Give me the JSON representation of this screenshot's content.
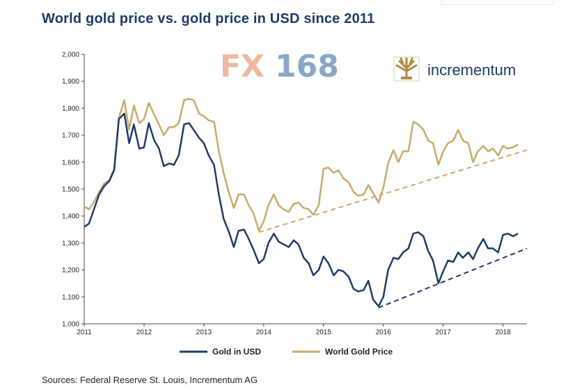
{
  "title": "World gold price vs. gold price in USD since 2011",
  "source": "Sources: Federal Reserve St. Louis, Incrementum AG",
  "brand": {
    "fx_part1": "FX",
    "fx_part2": "168",
    "incrementum": "incrementum",
    "fx_color1": "#f0b8a0",
    "fx_color2": "#8aa7c7",
    "incrementum_icon": "tree-logo-icon"
  },
  "chart_data": {
    "type": "line",
    "title": "World gold price vs. gold price in USD since 2011",
    "xlabel": "",
    "ylabel": "",
    "xlim": [
      2011.0,
      2018.4
    ],
    "ylim": [
      1000,
      2000
    ],
    "x_ticks": [
      "2011",
      "2012",
      "2013",
      "2014",
      "2015",
      "2016",
      "2017",
      "2018"
    ],
    "y_ticks": [
      "1,000",
      "1,100",
      "1,200",
      "1,300",
      "1,400",
      "1,500",
      "1,600",
      "1,700",
      "1,800",
      "1,900",
      "2,000"
    ],
    "legend_position": "bottom",
    "grid": false,
    "series": [
      {
        "name": "Gold in USD",
        "color": "#1f3a66",
        "points": [
          [
            2011.0,
            1360
          ],
          [
            2011.08,
            1372
          ],
          [
            2011.17,
            1430
          ],
          [
            2011.25,
            1480
          ],
          [
            2011.33,
            1510
          ],
          [
            2011.42,
            1530
          ],
          [
            2011.5,
            1570
          ],
          [
            2011.58,
            1760
          ],
          [
            2011.67,
            1780
          ],
          [
            2011.75,
            1670
          ],
          [
            2011.83,
            1740
          ],
          [
            2011.92,
            1650
          ],
          [
            2012.0,
            1655
          ],
          [
            2012.08,
            1745
          ],
          [
            2012.17,
            1680
          ],
          [
            2012.25,
            1650
          ],
          [
            2012.33,
            1585
          ],
          [
            2012.42,
            1595
          ],
          [
            2012.5,
            1590
          ],
          [
            2012.58,
            1625
          ],
          [
            2012.67,
            1740
          ],
          [
            2012.75,
            1745
          ],
          [
            2012.83,
            1720
          ],
          [
            2012.92,
            1690
          ],
          [
            2013.0,
            1670
          ],
          [
            2013.08,
            1625
          ],
          [
            2013.17,
            1590
          ],
          [
            2013.25,
            1480
          ],
          [
            2013.33,
            1390
          ],
          [
            2013.42,
            1340
          ],
          [
            2013.5,
            1285
          ],
          [
            2013.58,
            1345
          ],
          [
            2013.67,
            1350
          ],
          [
            2013.75,
            1315
          ],
          [
            2013.83,
            1275
          ],
          [
            2013.92,
            1225
          ],
          [
            2014.0,
            1240
          ],
          [
            2014.08,
            1300
          ],
          [
            2014.17,
            1335
          ],
          [
            2014.25,
            1305
          ],
          [
            2014.33,
            1295
          ],
          [
            2014.42,
            1285
          ],
          [
            2014.5,
            1310
          ],
          [
            2014.58,
            1295
          ],
          [
            2014.67,
            1245
          ],
          [
            2014.75,
            1225
          ],
          [
            2014.83,
            1180
          ],
          [
            2014.92,
            1200
          ],
          [
            2015.0,
            1250
          ],
          [
            2015.08,
            1225
          ],
          [
            2015.17,
            1180
          ],
          [
            2015.25,
            1200
          ],
          [
            2015.33,
            1195
          ],
          [
            2015.42,
            1175
          ],
          [
            2015.5,
            1130
          ],
          [
            2015.58,
            1120
          ],
          [
            2015.67,
            1125
          ],
          [
            2015.75,
            1160
          ],
          [
            2015.83,
            1090
          ],
          [
            2015.92,
            1065
          ],
          [
            2016.0,
            1100
          ],
          [
            2016.08,
            1200
          ],
          [
            2016.17,
            1245
          ],
          [
            2016.25,
            1240
          ],
          [
            2016.33,
            1265
          ],
          [
            2016.42,
            1280
          ],
          [
            2016.5,
            1335
          ],
          [
            2016.58,
            1340
          ],
          [
            2016.67,
            1325
          ],
          [
            2016.75,
            1270
          ],
          [
            2016.83,
            1235
          ],
          [
            2016.92,
            1150
          ],
          [
            2017.0,
            1195
          ],
          [
            2017.08,
            1235
          ],
          [
            2017.17,
            1230
          ],
          [
            2017.25,
            1265
          ],
          [
            2017.33,
            1245
          ],
          [
            2017.42,
            1265
          ],
          [
            2017.5,
            1240
          ],
          [
            2017.58,
            1280
          ],
          [
            2017.67,
            1315
          ],
          [
            2017.75,
            1280
          ],
          [
            2017.83,
            1280
          ],
          [
            2017.92,
            1265
          ],
          [
            2018.0,
            1330
          ],
          [
            2018.08,
            1335
          ],
          [
            2018.17,
            1325
          ],
          [
            2018.25,
            1335
          ]
        ]
      },
      {
        "name": "World Gold Price",
        "color": "#c9a96a",
        "points": [
          [
            2011.0,
            1435
          ],
          [
            2011.08,
            1425
          ],
          [
            2011.17,
            1455
          ],
          [
            2011.25,
            1490
          ],
          [
            2011.33,
            1520
          ],
          [
            2011.42,
            1535
          ],
          [
            2011.5,
            1575
          ],
          [
            2011.58,
            1765
          ],
          [
            2011.67,
            1830
          ],
          [
            2011.75,
            1720
          ],
          [
            2011.83,
            1810
          ],
          [
            2011.92,
            1745
          ],
          [
            2012.0,
            1760
          ],
          [
            2012.08,
            1820
          ],
          [
            2012.17,
            1775
          ],
          [
            2012.25,
            1740
          ],
          [
            2012.33,
            1700
          ],
          [
            2012.42,
            1730
          ],
          [
            2012.5,
            1730
          ],
          [
            2012.58,
            1745
          ],
          [
            2012.67,
            1830
          ],
          [
            2012.75,
            1835
          ],
          [
            2012.83,
            1830
          ],
          [
            2012.92,
            1780
          ],
          [
            2013.0,
            1770
          ],
          [
            2013.08,
            1755
          ],
          [
            2013.17,
            1750
          ],
          [
            2013.25,
            1640
          ],
          [
            2013.33,
            1560
          ],
          [
            2013.42,
            1485
          ],
          [
            2013.5,
            1430
          ],
          [
            2013.58,
            1480
          ],
          [
            2013.67,
            1480
          ],
          [
            2013.75,
            1440
          ],
          [
            2013.83,
            1410
          ],
          [
            2013.92,
            1345
          ],
          [
            2014.0,
            1380
          ],
          [
            2014.08,
            1440
          ],
          [
            2014.17,
            1480
          ],
          [
            2014.25,
            1440
          ],
          [
            2014.33,
            1425
          ],
          [
            2014.42,
            1415
          ],
          [
            2014.5,
            1445
          ],
          [
            2014.58,
            1450
          ],
          [
            2014.67,
            1430
          ],
          [
            2014.75,
            1425
          ],
          [
            2014.83,
            1405
          ],
          [
            2014.92,
            1440
          ],
          [
            2015.0,
            1575
          ],
          [
            2015.08,
            1580
          ],
          [
            2015.17,
            1560
          ],
          [
            2015.25,
            1570
          ],
          [
            2015.33,
            1540
          ],
          [
            2015.42,
            1525
          ],
          [
            2015.5,
            1490
          ],
          [
            2015.58,
            1475
          ],
          [
            2015.67,
            1480
          ],
          [
            2015.75,
            1515
          ],
          [
            2015.83,
            1485
          ],
          [
            2015.92,
            1450
          ],
          [
            2016.0,
            1505
          ],
          [
            2016.08,
            1595
          ],
          [
            2016.17,
            1645
          ],
          [
            2016.25,
            1600
          ],
          [
            2016.33,
            1640
          ],
          [
            2016.42,
            1640
          ],
          [
            2016.5,
            1750
          ],
          [
            2016.58,
            1740
          ],
          [
            2016.67,
            1720
          ],
          [
            2016.75,
            1680
          ],
          [
            2016.83,
            1670
          ],
          [
            2016.92,
            1590
          ],
          [
            2017.0,
            1640
          ],
          [
            2017.08,
            1670
          ],
          [
            2017.17,
            1680
          ],
          [
            2017.25,
            1720
          ],
          [
            2017.33,
            1680
          ],
          [
            2017.42,
            1670
          ],
          [
            2017.5,
            1600
          ],
          [
            2017.58,
            1640
          ],
          [
            2017.67,
            1660
          ],
          [
            2017.75,
            1640
          ],
          [
            2017.83,
            1650
          ],
          [
            2017.92,
            1625
          ],
          [
            2018.0,
            1660
          ],
          [
            2018.08,
            1650
          ],
          [
            2018.17,
            1655
          ],
          [
            2018.25,
            1665
          ]
        ]
      }
    ],
    "trendlines": [
      {
        "series": "World Gold Price",
        "color": "#c9a96a",
        "from": [
          2013.92,
          1340
        ],
        "to": [
          2018.4,
          1645
        ]
      },
      {
        "series": "Gold in USD",
        "color": "#1f3a66",
        "from": [
          2015.92,
          1060
        ],
        "to": [
          2018.4,
          1280
        ]
      }
    ]
  }
}
